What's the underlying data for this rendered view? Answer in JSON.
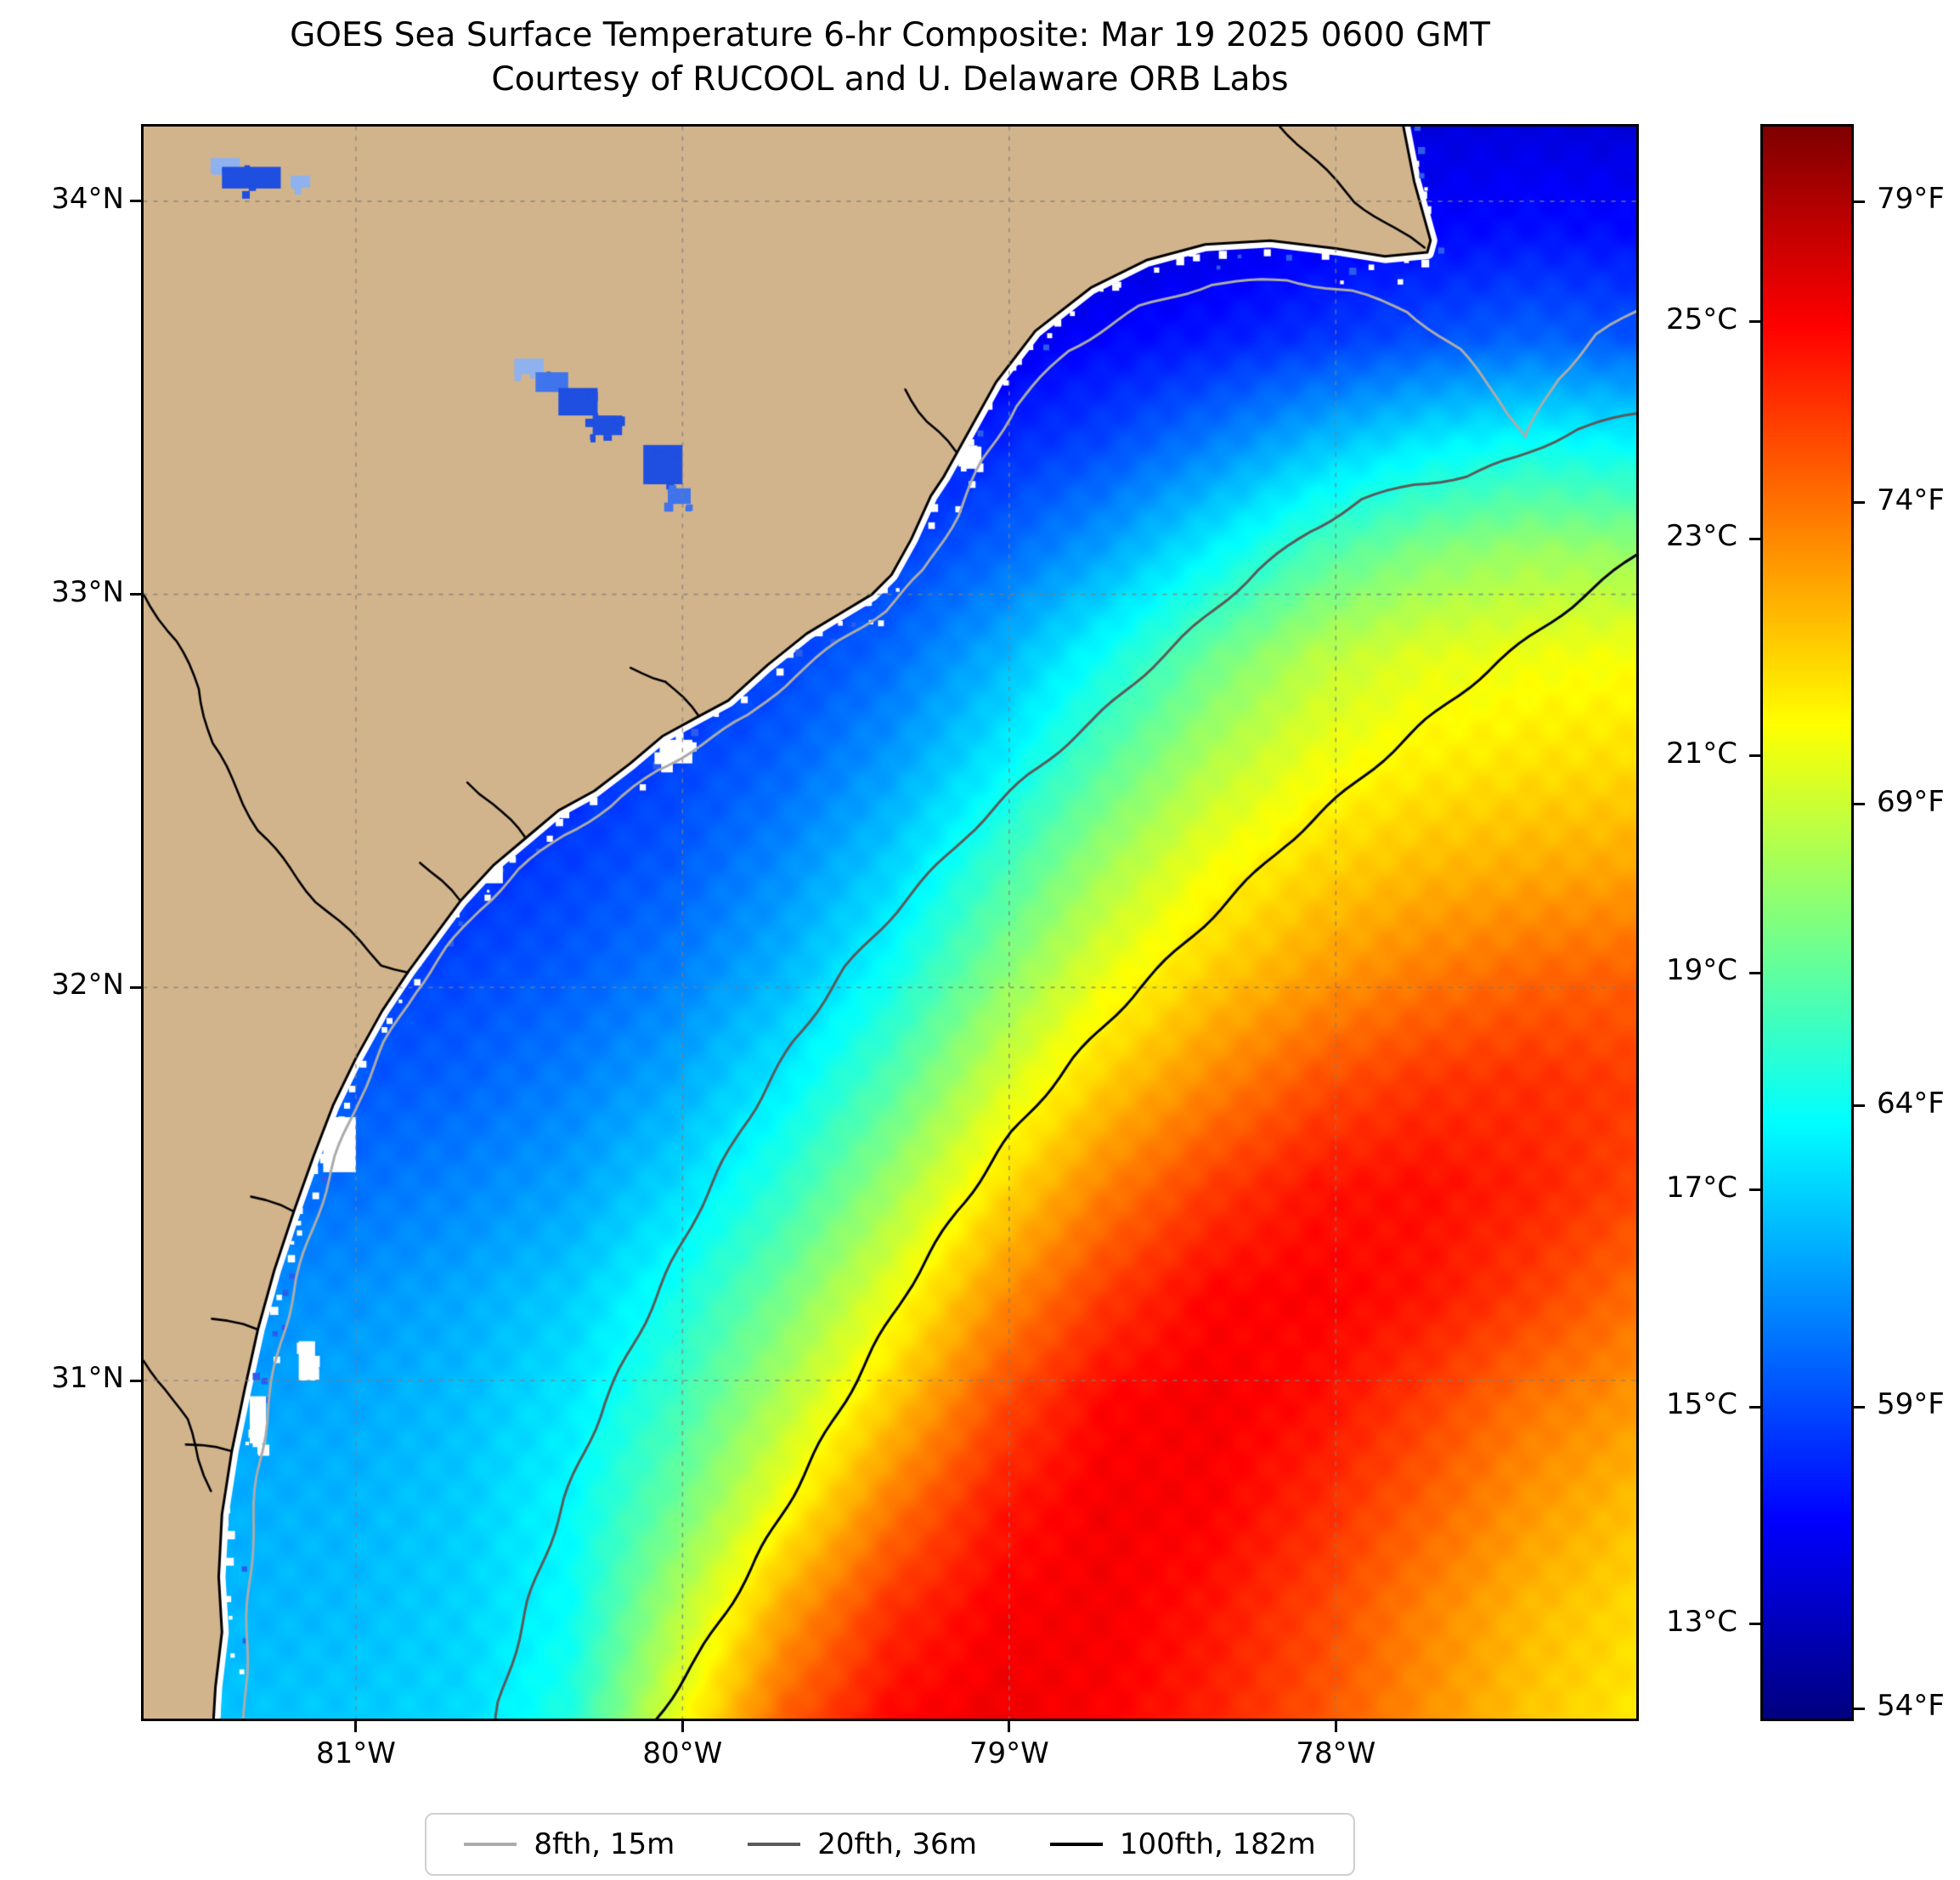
{
  "title": {
    "line1": "GOES Sea Surface Temperature 6-hr Composite: Mar 19 2025 0600 GMT",
    "line2": "Courtesy of RUCOOL and U. Delaware ORB Labs"
  },
  "axes": {
    "x_ticks": [
      {
        "value": -81,
        "label": "81°W"
      },
      {
        "value": -80,
        "label": "80°W"
      },
      {
        "value": -79,
        "label": "79°W"
      },
      {
        "value": -78,
        "label": "78°W"
      }
    ],
    "y_ticks": [
      {
        "value": 34,
        "label": "34°N"
      },
      {
        "value": 33,
        "label": "33°N"
      },
      {
        "value": 32,
        "label": "32°N"
      },
      {
        "value": 31,
        "label": "31°N"
      }
    ]
  },
  "colorbar": {
    "tmin_c": 12.13,
    "tmax_c": 26.8,
    "c_ticks": [
      {
        "value": 25,
        "label": "25°C"
      },
      {
        "value": 23,
        "label": "23°C"
      },
      {
        "value": 21,
        "label": "21°C"
      },
      {
        "value": 19,
        "label": "19°C"
      },
      {
        "value": 17,
        "label": "17°C"
      },
      {
        "value": 15,
        "label": "15°C"
      },
      {
        "value": 13,
        "label": "13°C"
      }
    ],
    "f_ticks": [
      {
        "value": 79,
        "label": "79°F"
      },
      {
        "value": 74,
        "label": "74°F"
      },
      {
        "value": 69,
        "label": "69°F"
      },
      {
        "value": 64,
        "label": "64°F"
      },
      {
        "value": 59,
        "label": "59°F"
      },
      {
        "value": 54,
        "label": "54°F"
      }
    ]
  },
  "legend": {
    "items": [
      {
        "label": "8fth, 15m",
        "color": "#ababab"
      },
      {
        "label": "20fth, 36m",
        "color": "#5a5a5a"
      },
      {
        "label": "100fth, 182m",
        "color": "#000000"
      }
    ]
  },
  "colors": {
    "background": "#ffffff",
    "land": "#d2b48c",
    "coast": "#000000",
    "grid": "rgba(125,125,125,0.75)",
    "lake_dark": "#1f4fe0",
    "lake_mid": "#3f74ec",
    "lake_light": "#8fb2ee",
    "speckle_blue": "#2b5cea",
    "nodata": "#ffffff"
  },
  "chart_data": {
    "type": "heatmap",
    "title": "GOES Sea Surface Temperature 6-hr Composite: Mar 19 2025 0600 GMT",
    "subtitle": "Courtesy of RUCOOL and U. Delaware ORB Labs",
    "units": "°C",
    "colormap": "jet",
    "lon_range": [
      -81.65,
      -77.08
    ],
    "lat_range": [
      30.14,
      34.19
    ],
    "colorbar_range_c": [
      12.13,
      26.8
    ],
    "grid_lons": [
      -81.65,
      -81.32,
      -81.0,
      -80.67,
      -80.34,
      -80.02,
      -79.69,
      -79.36,
      -79.04,
      -78.71,
      -78.39,
      -78.06,
      -77.73,
      -77.41,
      -77.08
    ],
    "grid_lats": [
      34.19,
      33.92,
      33.65,
      33.38,
      33.11,
      32.84,
      32.57,
      32.3,
      32.03,
      31.76,
      31.49,
      31.22,
      30.95,
      30.68,
      30.41,
      30.14
    ],
    "sst_c": [
      [
        13.0,
        13.0,
        13.0,
        13.0,
        13.0,
        13.0,
        13.0,
        13.0,
        13.0,
        13.1,
        13.2,
        13.4,
        13.5,
        13.5,
        13.4
      ],
      [
        13.0,
        13.0,
        13.0,
        13.0,
        13.0,
        13.0,
        13.1,
        13.1,
        13.2,
        13.3,
        13.5,
        13.8,
        14.0,
        14.2,
        14.1
      ],
      [
        13.2,
        13.2,
        13.2,
        13.2,
        13.2,
        13.3,
        13.4,
        13.5,
        13.7,
        14.0,
        14.3,
        14.7,
        15.1,
        15.4,
        15.2
      ],
      [
        13.5,
        13.5,
        13.5,
        13.5,
        13.6,
        13.7,
        13.9,
        14.1,
        14.5,
        15.0,
        15.8,
        16.7,
        17.4,
        17.8,
        17.6
      ],
      [
        13.8,
        13.8,
        13.8,
        13.8,
        13.9,
        14.1,
        14.4,
        14.8,
        15.4,
        16.3,
        17.5,
        18.7,
        19.5,
        19.9,
        19.8
      ],
      [
        14.0,
        14.0,
        14.0,
        14.1,
        14.2,
        14.5,
        14.9,
        15.5,
        16.5,
        17.8,
        19.2,
        20.3,
        20.9,
        21.1,
        21.2
      ],
      [
        14.2,
        14.2,
        14.2,
        14.3,
        14.5,
        14.9,
        15.4,
        16.2,
        17.4,
        18.9,
        20.2,
        21.1,
        21.5,
        21.7,
        21.8
      ],
      [
        14.5,
        14.5,
        14.5,
        14.6,
        14.9,
        15.3,
        16.0,
        17.0,
        18.5,
        20.0,
        21.2,
        21.9,
        22.3,
        22.5,
        22.6
      ],
      [
        14.8,
        14.8,
        14.8,
        15.0,
        15.3,
        15.8,
        16.6,
        17.8,
        19.5,
        21.0,
        22.0,
        22.7,
        23.2,
        23.5,
        23.6
      ],
      [
        15.1,
        15.1,
        15.2,
        15.4,
        15.8,
        16.4,
        17.4,
        18.8,
        20.6,
        22.0,
        23.0,
        23.8,
        24.2,
        24.3,
        24.1
      ],
      [
        15.5,
        15.5,
        15.6,
        15.9,
        16.3,
        17.1,
        18.3,
        19.9,
        21.7,
        23.1,
        24.1,
        24.7,
        24.8,
        24.5,
        24.0
      ],
      [
        16.0,
        16.0,
        16.1,
        16.4,
        16.9,
        17.9,
        19.3,
        21.0,
        22.8,
        24.1,
        24.9,
        25.0,
        24.7,
        24.1,
        23.4
      ],
      [
        16.3,
        16.3,
        16.4,
        16.7,
        17.3,
        18.5,
        20.2,
        22.0,
        23.8,
        24.9,
        25.1,
        24.8,
        24.1,
        23.3,
        22.8
      ],
      [
        16.5,
        16.5,
        16.6,
        16.9,
        17.6,
        19.2,
        21.2,
        23.2,
        24.6,
        25.1,
        25.0,
        24.4,
        23.6,
        22.8,
        22.2
      ],
      [
        16.6,
        16.6,
        16.7,
        17.0,
        17.7,
        20.2,
        22.6,
        24.3,
        25.0,
        25.1,
        24.7,
        24.0,
        23.1,
        22.3,
        21.8
      ],
      [
        16.8,
        16.8,
        16.9,
        17.1,
        18.1,
        21.0,
        23.6,
        24.9,
        25.2,
        25.0,
        24.5,
        23.8,
        22.9,
        22.1,
        21.6
      ]
    ]
  },
  "map_geometry": {
    "coastline": [
      [
        -77.8,
        34.22
      ],
      [
        -77.76,
        34.05
      ],
      [
        -77.71,
        33.9
      ],
      [
        -77.72,
        33.87
      ],
      [
        -77.85,
        33.86
      ],
      [
        -78.0,
        33.88
      ],
      [
        -78.2,
        33.9
      ],
      [
        -78.4,
        33.89
      ],
      [
        -78.58,
        33.85
      ],
      [
        -78.75,
        33.78
      ],
      [
        -78.92,
        33.67
      ],
      [
        -79.04,
        33.54
      ],
      [
        -79.12,
        33.42
      ],
      [
        -79.16,
        33.36
      ],
      [
        -79.2,
        33.3
      ],
      [
        -79.24,
        33.25
      ],
      [
        -79.3,
        33.14
      ],
      [
        -79.36,
        33.05
      ],
      [
        -79.42,
        33.0
      ],
      [
        -79.52,
        32.95
      ],
      [
        -79.62,
        32.9
      ],
      [
        -79.74,
        32.82
      ],
      [
        -79.86,
        32.73
      ],
      [
        -79.95,
        32.69
      ],
      [
        -80.06,
        32.64
      ],
      [
        -80.16,
        32.57
      ],
      [
        -80.27,
        32.5
      ],
      [
        -80.38,
        32.45
      ],
      [
        -80.48,
        32.38
      ],
      [
        -80.58,
        32.31
      ],
      [
        -80.68,
        32.22
      ],
      [
        -80.76,
        32.13
      ],
      [
        -80.84,
        32.04
      ],
      [
        -80.92,
        31.94
      ],
      [
        -81.0,
        31.82
      ],
      [
        -81.07,
        31.7
      ],
      [
        -81.13,
        31.57
      ],
      [
        -81.19,
        31.43
      ],
      [
        -81.25,
        31.28
      ],
      [
        -81.3,
        31.13
      ],
      [
        -81.34,
        30.98
      ],
      [
        -81.38,
        30.82
      ],
      [
        -81.41,
        30.66
      ],
      [
        -81.42,
        30.5
      ],
      [
        -81.41,
        30.36
      ],
      [
        -81.43,
        30.22
      ],
      [
        -81.44,
        30.08
      ]
    ],
    "contours": {
      "fth8": [
        [
          -77.08,
          33.72
        ],
        [
          -77.2,
          33.66
        ],
        [
          -77.32,
          33.55
        ],
        [
          -77.42,
          33.4
        ],
        [
          -77.5,
          33.5
        ],
        [
          -77.62,
          33.62
        ],
        [
          -77.78,
          33.72
        ],
        [
          -77.95,
          33.77
        ],
        [
          -78.15,
          33.8
        ],
        [
          -78.38,
          33.79
        ],
        [
          -78.6,
          33.73
        ],
        [
          -78.82,
          33.62
        ],
        [
          -78.98,
          33.48
        ],
        [
          -79.08,
          33.34
        ],
        [
          -79.16,
          33.2
        ],
        [
          -79.26,
          33.06
        ],
        [
          -79.38,
          32.96
        ],
        [
          -79.52,
          32.88
        ],
        [
          -79.66,
          32.79
        ],
        [
          -79.8,
          32.69
        ],
        [
          -79.94,
          32.62
        ],
        [
          -80.08,
          32.55
        ],
        [
          -80.22,
          32.46
        ],
        [
          -80.36,
          32.39
        ],
        [
          -80.5,
          32.3
        ],
        [
          -80.62,
          32.2
        ],
        [
          -80.72,
          32.1
        ],
        [
          -80.82,
          31.99
        ],
        [
          -80.91,
          31.86
        ],
        [
          -80.99,
          31.72
        ],
        [
          -81.06,
          31.57
        ],
        [
          -81.12,
          31.42
        ],
        [
          -81.18,
          31.26
        ],
        [
          -81.23,
          31.1
        ],
        [
          -81.27,
          30.93
        ],
        [
          -81.3,
          30.76
        ],
        [
          -81.32,
          30.58
        ],
        [
          -81.33,
          30.4
        ],
        [
          -81.34,
          30.22
        ],
        [
          -81.34,
          30.08
        ]
      ],
      "fth20": [
        [
          -77.08,
          33.46
        ],
        [
          -77.26,
          33.42
        ],
        [
          -77.44,
          33.35
        ],
        [
          -77.6,
          33.3
        ],
        [
          -77.76,
          33.28
        ],
        [
          -77.92,
          33.24
        ],
        [
          -78.08,
          33.16
        ],
        [
          -78.24,
          33.06
        ],
        [
          -78.4,
          32.94
        ],
        [
          -78.56,
          32.82
        ],
        [
          -78.74,
          32.68
        ],
        [
          -78.94,
          32.54
        ],
        [
          -79.14,
          32.38
        ],
        [
          -79.32,
          32.22
        ],
        [
          -79.5,
          32.05
        ],
        [
          -79.66,
          31.86
        ],
        [
          -79.82,
          31.64
        ],
        [
          -79.96,
          31.42
        ],
        [
          -80.1,
          31.18
        ],
        [
          -80.24,
          30.94
        ],
        [
          -80.36,
          30.7
        ],
        [
          -80.47,
          30.44
        ],
        [
          -80.56,
          30.18
        ],
        [
          -80.58,
          30.08
        ]
      ],
      "fth100": [
        [
          -77.08,
          33.1
        ],
        [
          -77.28,
          32.97
        ],
        [
          -77.5,
          32.83
        ],
        [
          -77.72,
          32.68
        ],
        [
          -77.94,
          32.52
        ],
        [
          -78.16,
          32.36
        ],
        [
          -78.38,
          32.18
        ],
        [
          -78.6,
          32.0
        ],
        [
          -78.8,
          31.82
        ],
        [
          -78.99,
          31.63
        ],
        [
          -79.16,
          31.43
        ],
        [
          -79.32,
          31.22
        ],
        [
          -79.47,
          31.0
        ],
        [
          -79.63,
          30.76
        ],
        [
          -79.79,
          30.52
        ],
        [
          -79.95,
          30.3
        ],
        [
          -80.08,
          30.14
        ],
        [
          -80.12,
          30.08
        ]
      ]
    },
    "rivers": [
      [
        [
          -81.65,
          33.0
        ],
        [
          -81.55,
          32.88
        ],
        [
          -81.48,
          32.76
        ],
        [
          -81.44,
          32.62
        ],
        [
          -81.36,
          32.5
        ],
        [
          -81.3,
          32.4
        ],
        [
          -81.2,
          32.3
        ],
        [
          -81.12,
          32.22
        ],
        [
          -81.02,
          32.14
        ],
        [
          -80.92,
          32.06
        ],
        [
          -80.84,
          32.04
        ]
      ],
      [
        [
          -81.65,
          31.05
        ],
        [
          -81.58,
          30.98
        ],
        [
          -81.52,
          30.9
        ],
        [
          -81.48,
          30.8
        ],
        [
          -81.44,
          30.72
        ]
      ],
      [
        [
          -78.2,
          34.22
        ],
        [
          -78.06,
          34.1
        ],
        [
          -77.94,
          34.0
        ],
        [
          -77.82,
          33.93
        ],
        [
          -77.73,
          33.88
        ]
      ]
    ],
    "estuaries": [
      [
        [
          -79.16,
          33.36
        ],
        [
          -79.25,
          33.44
        ],
        [
          -79.32,
          33.52
        ]
      ],
      [
        [
          -79.95,
          32.69
        ],
        [
          -80.05,
          32.78
        ],
        [
          -80.16,
          32.81
        ]
      ],
      [
        [
          -80.48,
          32.38
        ],
        [
          -80.58,
          32.47
        ],
        [
          -80.66,
          32.52
        ]
      ],
      [
        [
          -80.68,
          32.22
        ],
        [
          -80.8,
          32.32
        ]
      ],
      [
        [
          -81.19,
          31.43
        ],
        [
          -81.32,
          31.47
        ]
      ],
      [
        [
          -81.3,
          31.13
        ],
        [
          -81.44,
          31.16
        ]
      ],
      [
        [
          -81.38,
          30.82
        ],
        [
          -81.52,
          30.84
        ]
      ]
    ],
    "lakes": [
      [
        -81.4,
        34.09,
        0.09,
        0.04,
        "light"
      ],
      [
        -81.32,
        34.06,
        0.18,
        0.055,
        "dark"
      ],
      [
        -81.17,
        34.05,
        0.06,
        0.03,
        "light"
      ],
      [
        -80.47,
        33.58,
        0.09,
        0.04,
        "light"
      ],
      [
        -80.4,
        33.54,
        0.1,
        0.05,
        "mid"
      ],
      [
        -80.32,
        33.49,
        0.12,
        0.07,
        "dark"
      ],
      [
        -80.23,
        33.43,
        0.09,
        0.05,
        "dark"
      ],
      [
        -80.06,
        33.33,
        0.12,
        0.1,
        "dark"
      ],
      [
        -80.01,
        33.25,
        0.07,
        0.04,
        "mid"
      ]
    ],
    "nodata_patches": [
      [
        -81.05,
        31.6,
        0.1,
        0.14
      ],
      [
        -81.15,
        31.05,
        0.05,
        0.1
      ],
      [
        -80.02,
        32.6,
        0.1,
        0.06
      ],
      [
        -79.47,
        33.0,
        0.09,
        0.06
      ],
      [
        -80.6,
        32.3,
        0.1,
        0.07
      ],
      [
        -81.3,
        30.9,
        0.05,
        0.12
      ],
      [
        -79.12,
        33.35,
        0.07,
        0.05
      ]
    ]
  }
}
